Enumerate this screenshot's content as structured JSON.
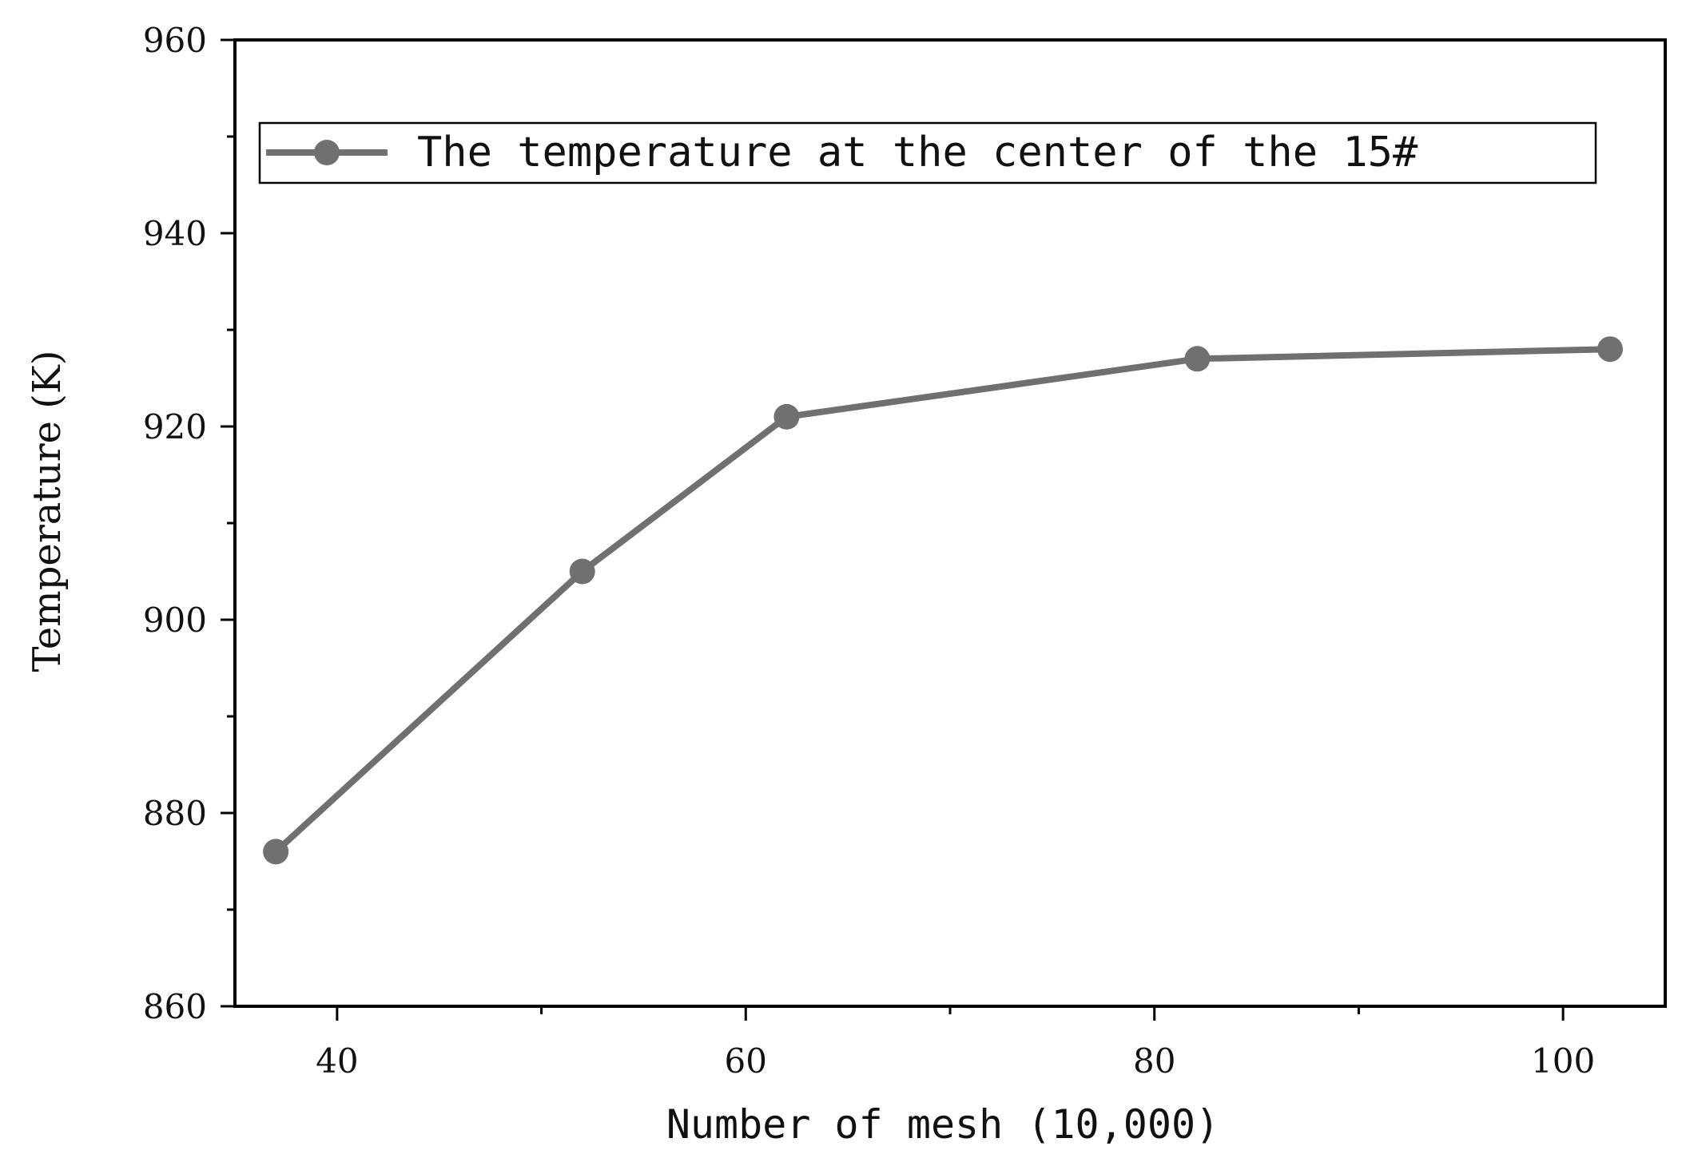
{
  "chart_data": {
    "type": "line",
    "xlabel": "Number of mesh (10,000)",
    "ylabel": "Temperature (K)",
    "xlim": [
      35,
      105
    ],
    "ylim": [
      860,
      960
    ],
    "x_ticks": [
      40,
      60,
      80,
      100
    ],
    "y_ticks": [
      860,
      880,
      900,
      920,
      940,
      960
    ],
    "x_tick_labels": [
      "40",
      "60",
      "80",
      "100"
    ],
    "y_tick_labels": [
      "860",
      "880",
      "900",
      "920",
      "940",
      "960"
    ],
    "grid": false,
    "legend_position": "top",
    "series": [
      {
        "name": "The temperature at the center of the 15#",
        "color": "#707070",
        "x": [
          37,
          52,
          62,
          82.1,
          102.3
        ],
        "y": [
          876,
          905,
          921,
          927,
          928
        ]
      }
    ]
  }
}
